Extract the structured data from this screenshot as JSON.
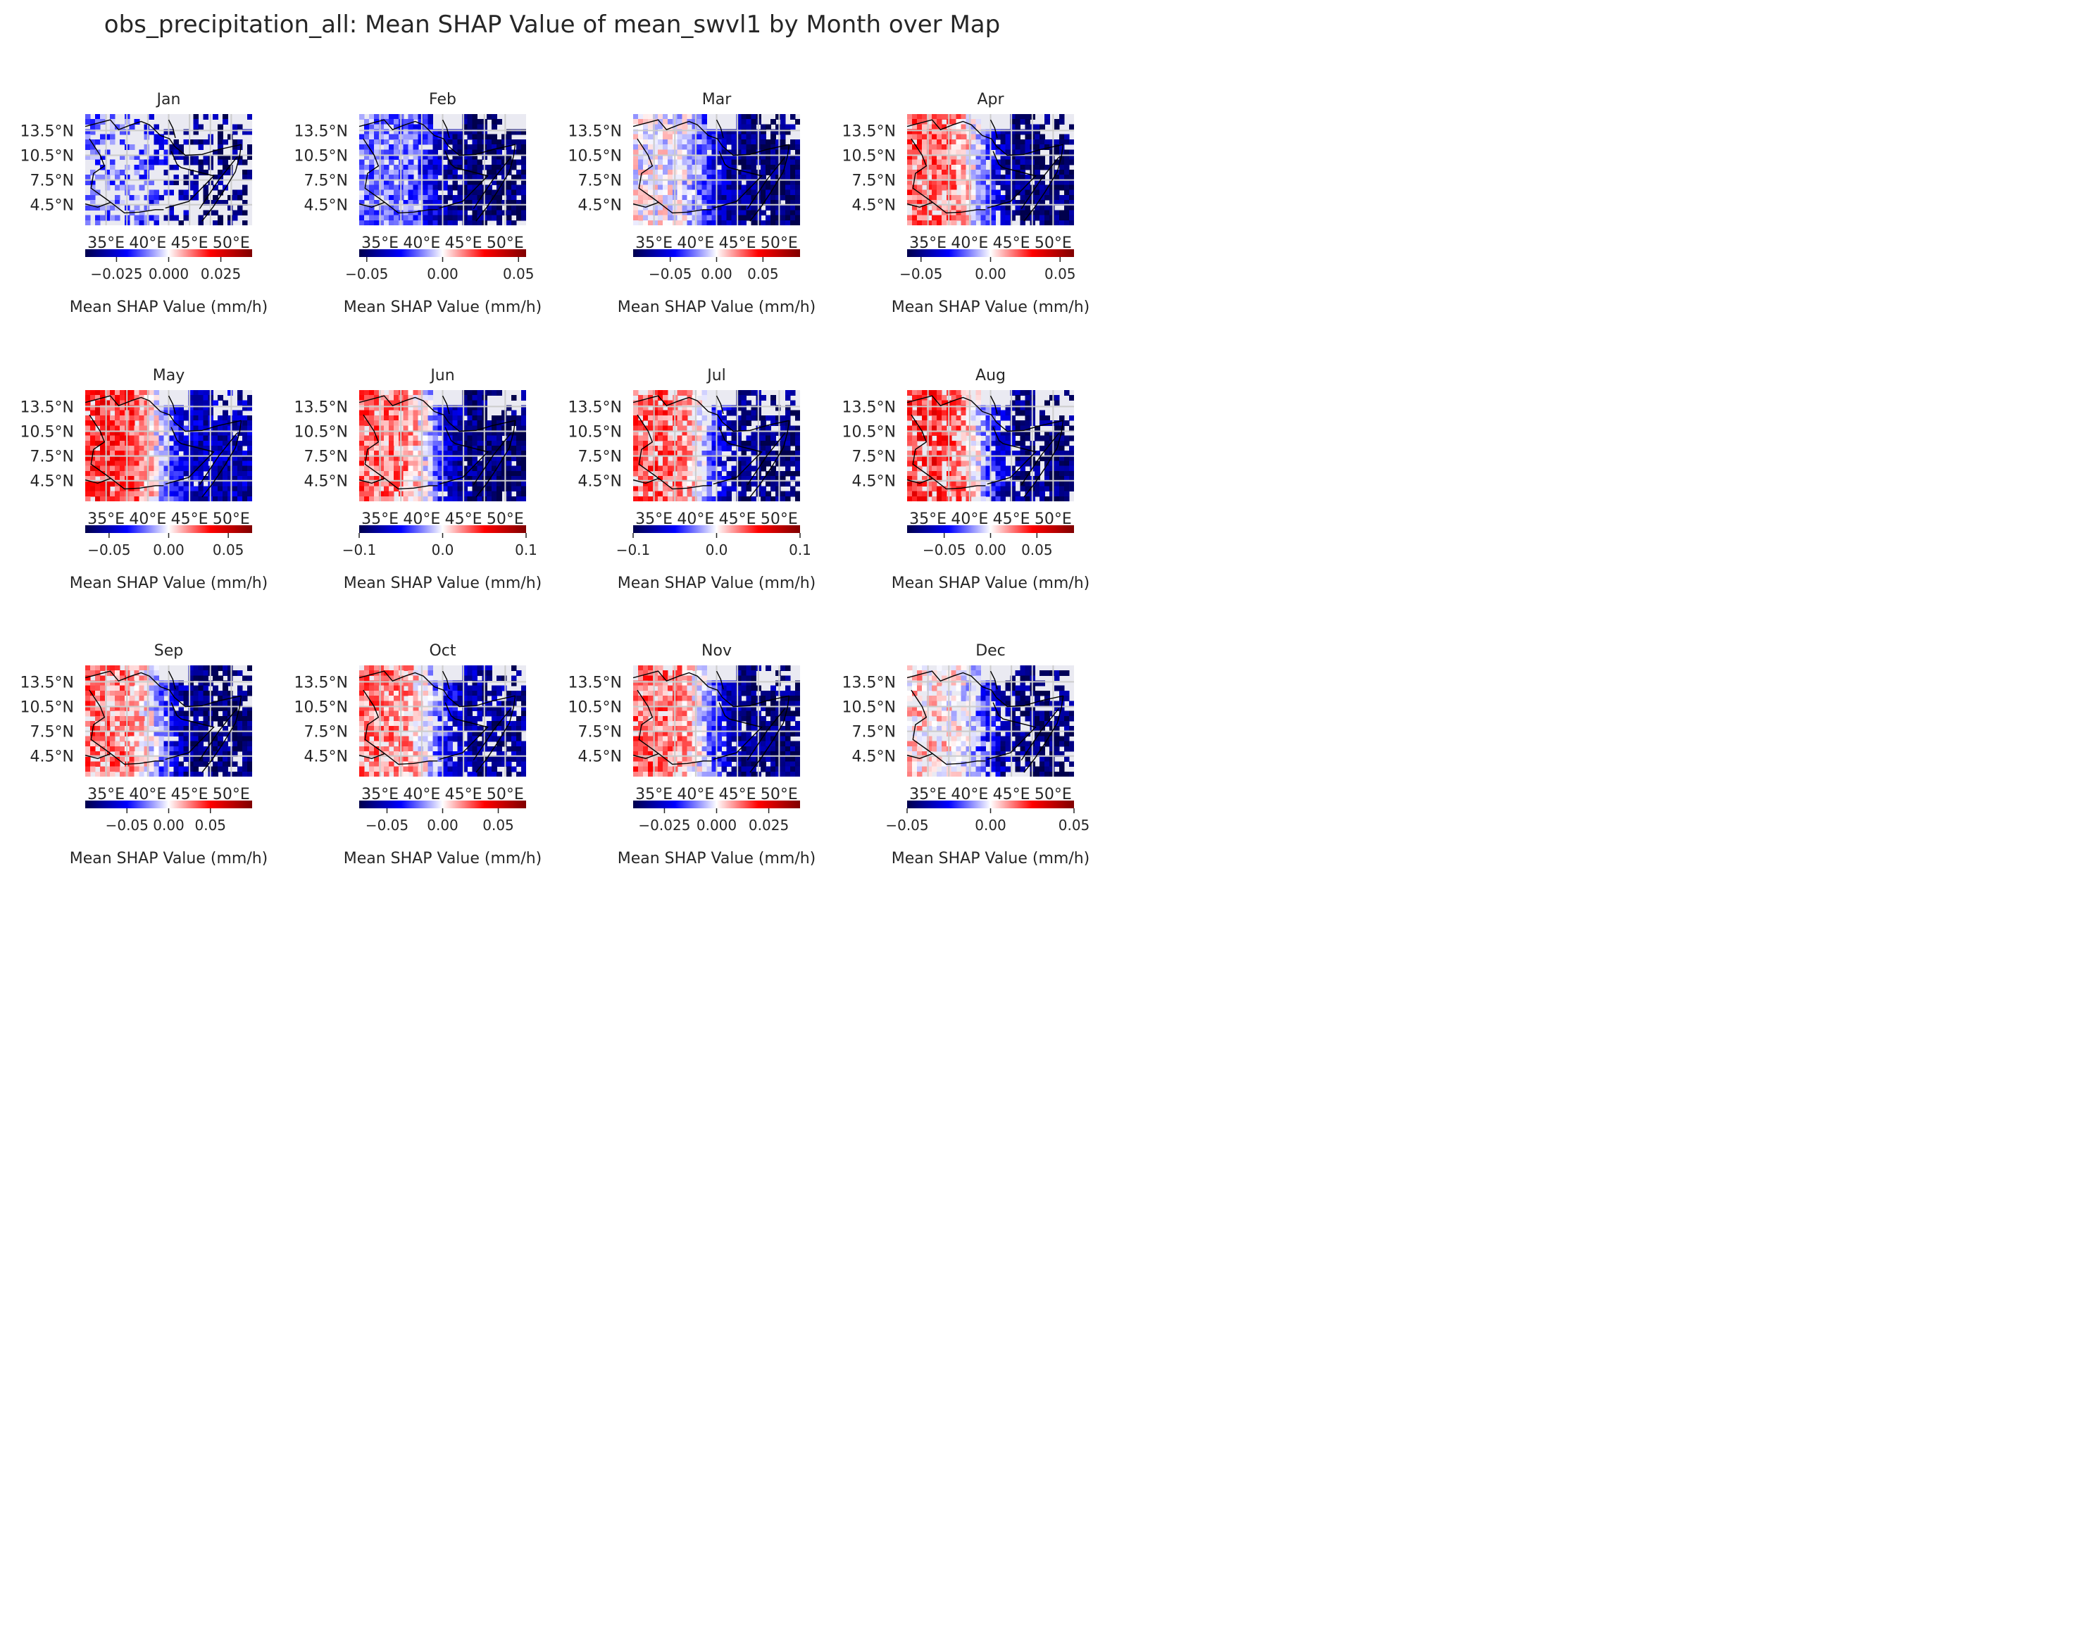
{
  "figure": {
    "title": "obs_precipitation_all: Mean SHAP Value of mean_swvl1 by Month over Map"
  },
  "chart_data": [
    {
      "type": "heatmap",
      "title": "Jan",
      "lat_ticks": [
        "13.5°N",
        "10.5°N",
        "7.5°N",
        "4.5°N"
      ],
      "lon_ticks": [
        "35°E",
        "40°E",
        "45°E",
        "50°E"
      ],
      "colorbar": {
        "label": "Mean SHAP Value (mm/h)",
        "vmin": -0.04,
        "vmax": 0.04,
        "ticks": [
          -0.025,
          0.0,
          0.025
        ],
        "tick_labels": [
          "−0.025",
          "0.000",
          "0.025"
        ]
      },
      "pattern": {
        "west": -0.012,
        "east": -0.035,
        "coverage": 0.45
      }
    },
    {
      "type": "heatmap",
      "title": "Feb",
      "lat_ticks": [
        "13.5°N",
        "10.5°N",
        "7.5°N",
        "4.5°N"
      ],
      "lon_ticks": [
        "35°E",
        "40°E",
        "45°E",
        "50°E"
      ],
      "colorbar": {
        "label": "Mean SHAP Value (mm/h)",
        "vmin": -0.055,
        "vmax": 0.055,
        "ticks": [
          -0.05,
          0.0,
          0.05
        ],
        "tick_labels": [
          "−0.05",
          "0.00",
          "0.05"
        ]
      },
      "pattern": {
        "west": -0.015,
        "east": -0.05,
        "coverage": 0.85
      }
    },
    {
      "type": "heatmap",
      "title": "Mar",
      "lat_ticks": [
        "13.5°N",
        "10.5°N",
        "7.5°N",
        "4.5°N"
      ],
      "lon_ticks": [
        "35°E",
        "40°E",
        "45°E",
        "50°E"
      ],
      "colorbar": {
        "label": "Mean SHAP Value (mm/h)",
        "vmin": -0.09,
        "vmax": 0.09,
        "ticks": [
          -0.05,
          0.0,
          0.05
        ],
        "tick_labels": [
          "−0.05",
          "0.00",
          "0.05"
        ]
      },
      "pattern": {
        "west": 0.0,
        "east": -0.08,
        "coverage": 0.95
      }
    },
    {
      "type": "heatmap",
      "title": "Apr",
      "lat_ticks": [
        "13.5°N",
        "10.5°N",
        "7.5°N",
        "4.5°N"
      ],
      "lon_ticks": [
        "35°E",
        "40°E",
        "45°E",
        "50°E"
      ],
      "colorbar": {
        "label": "Mean SHAP Value (mm/h)",
        "vmin": -0.06,
        "vmax": 0.06,
        "ticks": [
          -0.05,
          0.0,
          0.05
        ],
        "tick_labels": [
          "−0.05",
          "0.00",
          "0.05"
        ]
      },
      "pattern": {
        "west": 0.02,
        "east": -0.055,
        "coverage": 0.9
      }
    },
    {
      "type": "heatmap",
      "title": "May",
      "lat_ticks": [
        "13.5°N",
        "10.5°N",
        "7.5°N",
        "4.5°N"
      ],
      "lon_ticks": [
        "35°E",
        "40°E",
        "45°E",
        "50°E"
      ],
      "colorbar": {
        "label": "Mean SHAP Value (mm/h)",
        "vmin": -0.07,
        "vmax": 0.07,
        "ticks": [
          -0.05,
          0.0,
          0.05
        ],
        "tick_labels": [
          "−0.05",
          "0.00",
          "0.05"
        ]
      },
      "pattern": {
        "west": 0.03,
        "east": -0.05,
        "coverage": 0.95
      }
    },
    {
      "type": "heatmap",
      "title": "Jun",
      "lat_ticks": [
        "13.5°N",
        "10.5°N",
        "7.5°N",
        "4.5°N"
      ],
      "lon_ticks": [
        "35°E",
        "40°E",
        "45°E",
        "50°E"
      ],
      "colorbar": {
        "label": "Mean SHAP Value (mm/h)",
        "vmin": -0.1,
        "vmax": 0.1,
        "ticks": [
          -0.1,
          0.0,
          0.1
        ],
        "tick_labels": [
          "−0.1",
          "0.0",
          "0.1"
        ]
      },
      "pattern": {
        "west": 0.03,
        "east": -0.09,
        "coverage": 0.95
      }
    },
    {
      "type": "heatmap",
      "title": "Jul",
      "lat_ticks": [
        "13.5°N",
        "10.5°N",
        "7.5°N",
        "4.5°N"
      ],
      "lon_ticks": [
        "35°E",
        "40°E",
        "45°E",
        "50°E"
      ],
      "colorbar": {
        "label": "Mean SHAP Value (mm/h)",
        "vmin": -0.1,
        "vmax": 0.1,
        "ticks": [
          -0.1,
          0.0,
          0.1
        ],
        "tick_labels": [
          "−0.1",
          "0.0",
          "0.1"
        ]
      },
      "pattern": {
        "west": 0.035,
        "east": -0.09,
        "coverage": 0.8
      }
    },
    {
      "type": "heatmap",
      "title": "Aug",
      "lat_ticks": [
        "13.5°N",
        "10.5°N",
        "7.5°N",
        "4.5°N"
      ],
      "lon_ticks": [
        "35°E",
        "40°E",
        "45°E",
        "50°E"
      ],
      "colorbar": {
        "label": "Mean SHAP Value (mm/h)",
        "vmin": -0.09,
        "vmax": 0.09,
        "ticks": [
          -0.05,
          0.0,
          0.05
        ],
        "tick_labels": [
          "−0.05",
          "0.00",
          "0.05"
        ]
      },
      "pattern": {
        "west": 0.04,
        "east": -0.08,
        "coverage": 0.8
      }
    },
    {
      "type": "heatmap",
      "title": "Sep",
      "lat_ticks": [
        "13.5°N",
        "10.5°N",
        "7.5°N",
        "4.5°N"
      ],
      "lon_ticks": [
        "35°E",
        "40°E",
        "45°E",
        "50°E"
      ],
      "colorbar": {
        "label": "Mean SHAP Value (mm/h)",
        "vmin": -0.1,
        "vmax": 0.1,
        "ticks": [
          -0.05,
          0.0,
          0.05
        ],
        "tick_labels": [
          "−0.05",
          "0.00",
          "0.05"
        ]
      },
      "pattern": {
        "west": 0.03,
        "east": -0.09,
        "coverage": 0.85
      }
    },
    {
      "type": "heatmap",
      "title": "Oct",
      "lat_ticks": [
        "13.5°N",
        "10.5°N",
        "7.5°N",
        "4.5°N"
      ],
      "lon_ticks": [
        "35°E",
        "40°E",
        "45°E",
        "50°E"
      ],
      "colorbar": {
        "label": "Mean SHAP Value (mm/h)",
        "vmin": -0.075,
        "vmax": 0.075,
        "ticks": [
          -0.05,
          0.0,
          0.05
        ],
        "tick_labels": [
          "−0.05",
          "0.00",
          "0.05"
        ]
      },
      "pattern": {
        "west": 0.02,
        "east": -0.06,
        "coverage": 0.85
      }
    },
    {
      "type": "heatmap",
      "title": "Nov",
      "lat_ticks": [
        "13.5°N",
        "10.5°N",
        "7.5°N",
        "4.5°N"
      ],
      "lon_ticks": [
        "35°E",
        "40°E",
        "45°E",
        "50°E"
      ],
      "colorbar": {
        "label": "Mean SHAP Value (mm/h)",
        "vmin": -0.04,
        "vmax": 0.04,
        "ticks": [
          -0.025,
          0.0,
          0.025
        ],
        "tick_labels": [
          "−0.025",
          "0.000",
          "0.025"
        ]
      },
      "pattern": {
        "west": 0.012,
        "east": -0.035,
        "coverage": 0.9
      }
    },
    {
      "type": "heatmap",
      "title": "Dec",
      "lat_ticks": [
        "13.5°N",
        "10.5°N",
        "7.5°N",
        "4.5°N"
      ],
      "lon_ticks": [
        "35°E",
        "40°E",
        "45°E",
        "50°E"
      ],
      "colorbar": {
        "label": "Mean SHAP Value (mm/h)",
        "vmin": -0.05,
        "vmax": 0.05,
        "ticks": [
          -0.05,
          0.0,
          0.05
        ],
        "tick_labels": [
          "−0.05",
          "0.00",
          "0.05"
        ]
      },
      "pattern": {
        "west": 0.005,
        "east": -0.045,
        "coverage": 0.7
      }
    }
  ]
}
